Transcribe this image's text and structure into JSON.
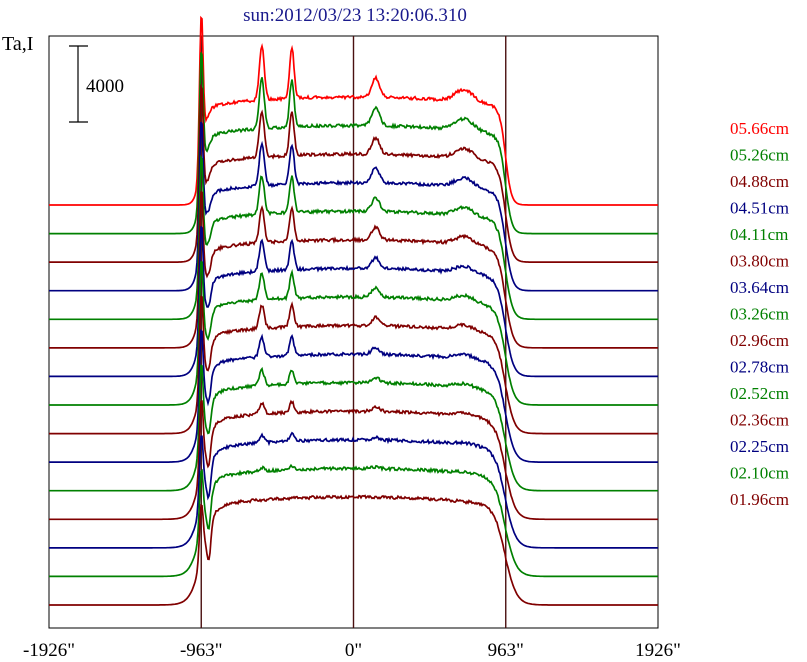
{
  "chart_data": {
    "type": "line",
    "title": "sun:2012/03/23 13:20:06.310",
    "ylabel": "Ta,I",
    "scale_bar_label": "4000",
    "x_ticks": [
      "-1926\"",
      "-963\"",
      "0\"",
      "963\"",
      "1926\""
    ],
    "x_tick_values": [
      -1926,
      -963,
      0,
      963,
      1926
    ],
    "xlim": [
      -1926,
      1926
    ],
    "vertical_lines_at": [
      -963,
      0,
      963
    ],
    "grid": false,
    "legend_position": "right",
    "series": [
      {
        "name": "05.66cm",
        "color": "#ff0000"
      },
      {
        "name": "05.26cm",
        "color": "#008000"
      },
      {
        "name": "04.88cm",
        "color": "#800000"
      },
      {
        "name": "04.51cm",
        "color": "#000080"
      },
      {
        "name": "04.11cm",
        "color": "#008000"
      },
      {
        "name": "03.80cm",
        "color": "#800000"
      },
      {
        "name": "03.64cm",
        "color": "#000080"
      },
      {
        "name": "03.26cm",
        "color": "#008000"
      },
      {
        "name": "02.96cm",
        "color": "#800000"
      },
      {
        "name": "02.78cm",
        "color": "#000080"
      },
      {
        "name": "02.52cm",
        "color": "#008000"
      },
      {
        "name": "02.36cm",
        "color": "#800000"
      },
      {
        "name": "02.25cm",
        "color": "#000080"
      },
      {
        "name": "02.10cm",
        "color": "#008000"
      },
      {
        "name": "01.96cm",
        "color": "#800000"
      }
    ]
  }
}
